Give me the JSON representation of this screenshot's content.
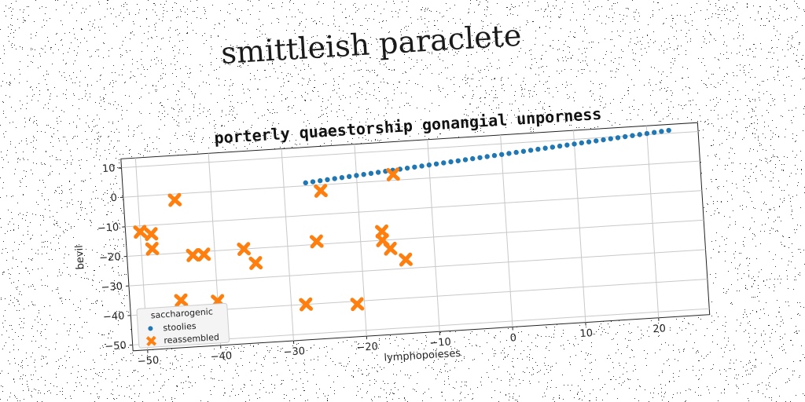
{
  "suptitle": "smittleish paraclete",
  "chart_data": {
    "type": "scatter",
    "title": "porterly quaestorship gonangial unporness",
    "xlabel": "lymphopoieses",
    "ylabel": "bevil",
    "xlim": [
      -52,
      27
    ],
    "ylim": [
      -52,
      13
    ],
    "xticks": [
      -50,
      -40,
      -30,
      -20,
      -10,
      0,
      10,
      20
    ],
    "yticks": [
      -50,
      -40,
      -30,
      -20,
      -10,
      0,
      10
    ],
    "grid": true,
    "legend": {
      "title": "saccharogenic",
      "placement": "lower-left"
    },
    "series": [
      {
        "name": "stoolies",
        "marker": "dot",
        "color": "#1f77b4",
        "x": [
          -27,
          -26,
          -25,
          -24,
          -23,
          -22,
          -21,
          -20,
          -19,
          -18,
          -17,
          -16,
          -15,
          -14,
          -13,
          -12,
          -11,
          -10,
          -9,
          -8,
          -7,
          -6,
          -5,
          -4,
          -3,
          -2,
          -1,
          0,
          1,
          2,
          3,
          4,
          5,
          6,
          7,
          8,
          9,
          10,
          11,
          12,
          13,
          14,
          15,
          16,
          17,
          18,
          19,
          20,
          21,
          22,
          23
        ],
        "y": [
          1.0,
          1.2,
          1.4,
          1.6,
          1.8,
          2.0,
          2.2,
          2.4,
          2.6,
          2.8,
          3.0,
          3.2,
          3.4,
          3.6,
          3.8,
          4.0,
          4.2,
          4.4,
          4.6,
          4.8,
          5.0,
          5.2,
          5.4,
          5.6,
          5.8,
          6.0,
          6.2,
          6.4,
          6.6,
          6.8,
          7.0,
          7.2,
          7.4,
          7.6,
          7.8,
          8.0,
          8.2,
          8.4,
          8.6,
          8.8,
          9.0,
          9.2,
          9.4,
          9.6,
          9.8,
          10.0,
          10.2,
          10.4,
          10.6,
          10.8,
          11.0
        ]
      },
      {
        "name": "reassembled",
        "marker": "x",
        "color": "#ff7f0e",
        "x": [
          -45,
          -50,
          -48.5,
          -48.5,
          -43,
          -41.5,
          -36,
          -34.5,
          -45,
          -40,
          -28,
          -25,
          -26,
          -21,
          -15,
          -17,
          -17,
          -16,
          -14
        ],
        "y": [
          -2,
          -12,
          -13,
          -18,
          -21,
          -21,
          -20,
          -25,
          -36,
          -37,
          -40,
          -2,
          -19,
          -41,
          2,
          -17,
          -20,
          -23,
          -27
        ]
      }
    ]
  }
}
